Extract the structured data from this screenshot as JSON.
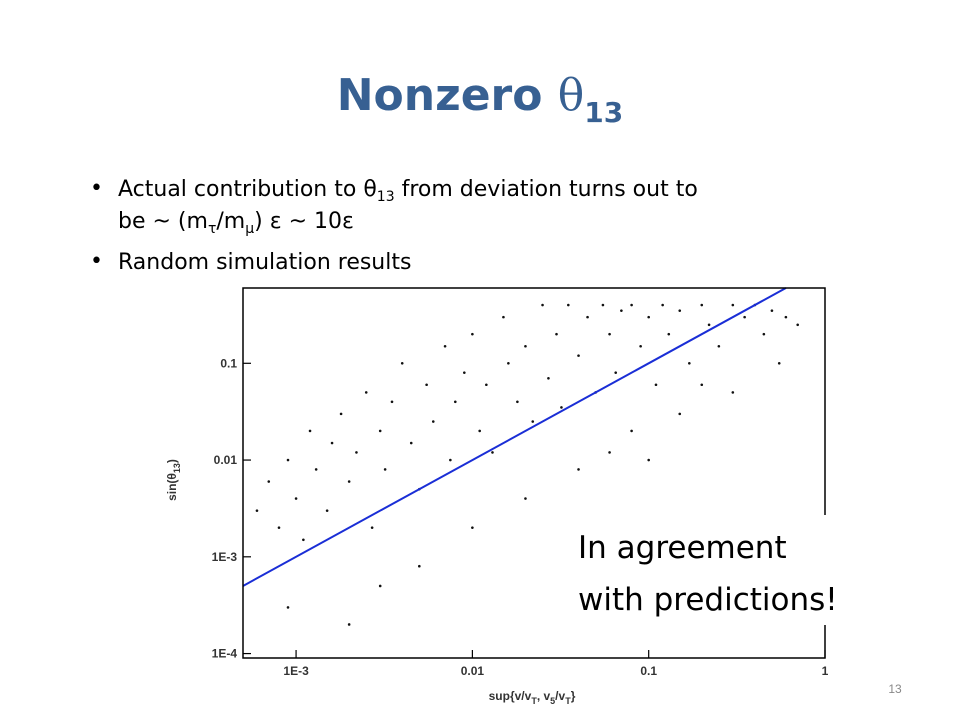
{
  "slide": {
    "title": [
      "Nonzero ",
      "θ",
      "13"
    ],
    "bullets": [
      [
        "Actual contribution to ",
        "θ",
        "13",
        " from deviation turns out to",
        "be ~ (m",
        "τ",
        "/m",
        "μ",
        ") ε ~ 10ε"
      ],
      [
        "Random simulation results"
      ]
    ],
    "annotation": [
      "In agreement",
      "with predictions!"
    ],
    "page_number": "13"
  },
  "chart_data": {
    "type": "scatter",
    "x_label": [
      "sup{v/v",
      "T",
      ", v",
      "5",
      "/v",
      "T",
      "}"
    ],
    "y_label": [
      "sin(θ",
      "13",
      ")"
    ],
    "xscale": "log",
    "yscale": "log",
    "xlim": [
      0.0005,
      1
    ],
    "ylim": [
      9e-05,
      0.6
    ],
    "xticks": [
      {
        "value": 0.001,
        "label": "1E-3"
      },
      0.01,
      0.1,
      1
    ],
    "yticks": [
      {
        "value": 0.0001,
        "label": "1E-4"
      },
      {
        "value": 0.001,
        "label": "1E-3"
      },
      0.01,
      0.1
    ],
    "points": {
      "color": "#111111",
      "x": [
        0.0006,
        0.0007,
        0.0008,
        0.0009,
        0.001,
        0.0011,
        0.0012,
        0.0013,
        0.0015,
        0.0016,
        0.0018,
        0.002,
        0.0022,
        0.0025,
        0.0027,
        0.003,
        0.0032,
        0.0035,
        0.004,
        0.0045,
        0.005,
        0.0055,
        0.006,
        0.007,
        0.0075,
        0.008,
        0.009,
        0.01,
        0.011,
        0.012,
        0.013,
        0.015,
        0.016,
        0.018,
        0.02,
        0.022,
        0.025,
        0.027,
        0.03,
        0.032,
        0.035,
        0.04,
        0.045,
        0.05,
        0.055,
        0.06,
        0.065,
        0.07,
        0.08,
        0.09,
        0.1,
        0.11,
        0.12,
        0.13,
        0.15,
        0.17,
        0.2,
        0.22,
        0.25,
        0.3,
        0.35,
        0.4,
        0.45,
        0.5,
        0.55,
        0.6,
        0.7,
        0.08,
        0.15,
        0.3,
        0.005,
        0.003,
        0.01,
        0.04,
        0.0009,
        0.002,
        0.02,
        0.06,
        0.2,
        0.1
      ],
      "y": [
        0.003,
        0.006,
        0.002,
        0.01,
        0.004,
        0.0015,
        0.02,
        0.008,
        0.003,
        0.015,
        0.03,
        0.006,
        0.012,
        0.05,
        0.002,
        0.02,
        0.008,
        0.04,
        0.1,
        0.015,
        0.005,
        0.06,
        0.025,
        0.15,
        0.01,
        0.04,
        0.08,
        0.2,
        0.02,
        0.06,
        0.012,
        0.3,
        0.1,
        0.04,
        0.15,
        0.025,
        0.4,
        0.07,
        0.2,
        0.035,
        0.4,
        0.12,
        0.3,
        0.05,
        0.4,
        0.2,
        0.08,
        0.35,
        0.4,
        0.15,
        0.3,
        0.06,
        0.4,
        0.2,
        0.35,
        0.1,
        0.4,
        0.25,
        0.15,
        0.4,
        0.3,
        0.4,
        0.2,
        0.35,
        0.1,
        0.3,
        0.25,
        0.02,
        0.03,
        0.05,
        0.0008,
        0.0005,
        0.002,
        0.008,
        0.0003,
        0.0002,
        0.004,
        0.012,
        0.06,
        0.01
      ]
    },
    "fit_line": {
      "color": "#1a2ed6",
      "x": [
        0.0005,
        0.6
      ],
      "y": [
        0.0005,
        0.6
      ]
    }
  }
}
